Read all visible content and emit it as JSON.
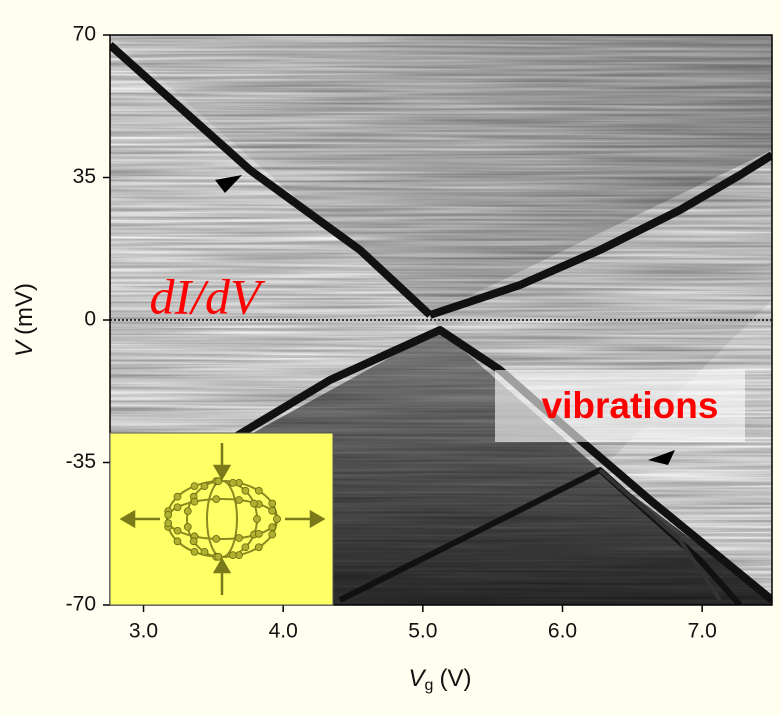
{
  "chart_data": {
    "type": "map",
    "xlim": [
      2.76,
      7.5
    ],
    "xticks": [
      {
        "value": 3,
        "label": "3.0"
      },
      {
        "value": 4,
        "label": "4.0"
      },
      {
        "value": 5,
        "label": "5.0"
      },
      {
        "value": 6,
        "label": "6.0"
      },
      {
        "value": 7,
        "label": "7.0"
      }
    ],
    "ylim": [
      -70,
      70
    ],
    "yticks": [
      -70,
      -35,
      0,
      35,
      70
    ],
    "hline": 0,
    "xlabel": {
      "symbol": "V",
      "subscript": "g",
      "unit": "(V)"
    },
    "ylabel": {
      "symbol": "V",
      "unit": "(mV)"
    },
    "annotations": [
      "dI/dV",
      "vibrations"
    ],
    "annotation_color": "#ff0000"
  }
}
